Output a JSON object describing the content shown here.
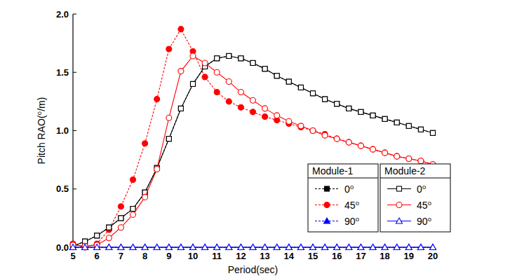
{
  "chart_data": {
    "type": "line",
    "x_label": "Period(sec)",
    "y_label": "Pitch RAO(⁰/m)",
    "x": [
      5,
      5.5,
      6,
      6.5,
      7,
      7.5,
      8,
      8.5,
      9,
      9.5,
      10,
      10.5,
      11,
      11.5,
      12,
      12.5,
      13,
      13.5,
      14,
      14.5,
      15,
      15.5,
      16,
      16.5,
      17,
      17.5,
      18,
      18.5,
      19,
      19.5,
      20
    ],
    "xlim": [
      5,
      20
    ],
    "xticks": [
      5,
      6,
      7,
      8,
      9,
      10,
      11,
      12,
      13,
      14,
      15,
      16,
      17,
      18,
      19,
      20
    ],
    "ylim": [
      0,
      2
    ],
    "yticks": [
      {
        "value": 0,
        "label": "0.0"
      },
      {
        "value": 0.5,
        "label": "0.5"
      },
      {
        "value": 1,
        "label": "1.0"
      },
      {
        "value": 1.5,
        "label": "1.5"
      },
      {
        "value": 2,
        "label": "2.0"
      }
    ],
    "grid": false,
    "legend": "bottom",
    "series": [
      {
        "name": "0⁰",
        "group": "Module-1",
        "color": "#000000",
        "marker": "filled-square",
        "line_style": "dashed",
        "values": [
          0.01,
          0.05,
          0.1,
          0.17,
          0.25,
          0.33,
          0.47,
          0.68,
          0.93,
          1.19,
          1.4,
          1.55,
          1.62,
          1.64,
          1.62,
          1.58,
          1.53,
          1.47,
          1.42,
          1.37,
          1.32,
          1.27,
          1.23,
          1.19,
          1.16,
          1.13,
          1.1,
          1.07,
          1.04,
          1.01,
          0.98
        ]
      },
      {
        "name": "45⁰",
        "group": "Module-1",
        "color": "#ff0000",
        "marker": "filled-circle",
        "line_style": "dashed",
        "values": [
          0.03,
          0.0,
          0.03,
          0.15,
          0.35,
          0.58,
          0.89,
          1.27,
          1.7,
          1.87,
          1.68,
          1.46,
          1.33,
          1.25,
          1.2,
          1.16,
          1.12,
          1.09,
          1.06,
          1.03,
          1.0,
          0.97,
          0.93,
          0.9,
          0.87,
          0.84,
          0.81,
          0.78,
          0.76,
          0.74,
          0.71
        ]
      },
      {
        "name": "90⁰",
        "group": "Module-1",
        "color": "#0000ff",
        "marker": "filled-triangle",
        "line_style": "dashed",
        "values": [
          0,
          0,
          0,
          0,
          0,
          0,
          0,
          0,
          0,
          0,
          0,
          0,
          0,
          0,
          0,
          0,
          0,
          0,
          0,
          0,
          0,
          0,
          0,
          0,
          0,
          0,
          0,
          0,
          0,
          0,
          0
        ]
      },
      {
        "name": "0⁰",
        "group": "Module-2",
        "color": "#000000",
        "marker": "open-square",
        "line_style": "solid",
        "values": [
          0.01,
          0.05,
          0.1,
          0.17,
          0.25,
          0.33,
          0.47,
          0.68,
          0.93,
          1.19,
          1.4,
          1.55,
          1.62,
          1.64,
          1.62,
          1.58,
          1.53,
          1.47,
          1.42,
          1.37,
          1.32,
          1.27,
          1.23,
          1.19,
          1.16,
          1.13,
          1.1,
          1.07,
          1.04,
          1.01,
          0.98
        ]
      },
      {
        "name": "45⁰",
        "group": "Module-2",
        "color": "#ff0000",
        "marker": "open-circle",
        "line_style": "solid",
        "values": [
          0.02,
          0.01,
          0.02,
          0.08,
          0.17,
          0.28,
          0.43,
          0.67,
          1.11,
          1.51,
          1.64,
          1.58,
          1.5,
          1.42,
          1.33,
          1.26,
          1.19,
          1.13,
          1.08,
          1.04,
          1.0,
          0.96,
          0.93,
          0.9,
          0.87,
          0.84,
          0.81,
          0.78,
          0.76,
          0.74,
          0.71
        ]
      },
      {
        "name": "90⁰",
        "group": "Module-2",
        "color": "#0000ff",
        "marker": "open-triangle",
        "line_style": "solid",
        "values": [
          0,
          0,
          0,
          0,
          0,
          0,
          0,
          0,
          0,
          0,
          0,
          0,
          0,
          0,
          0,
          0,
          0,
          0,
          0,
          0,
          0,
          0,
          0,
          0,
          0,
          0,
          0,
          0,
          0,
          0,
          0
        ]
      }
    ]
  }
}
